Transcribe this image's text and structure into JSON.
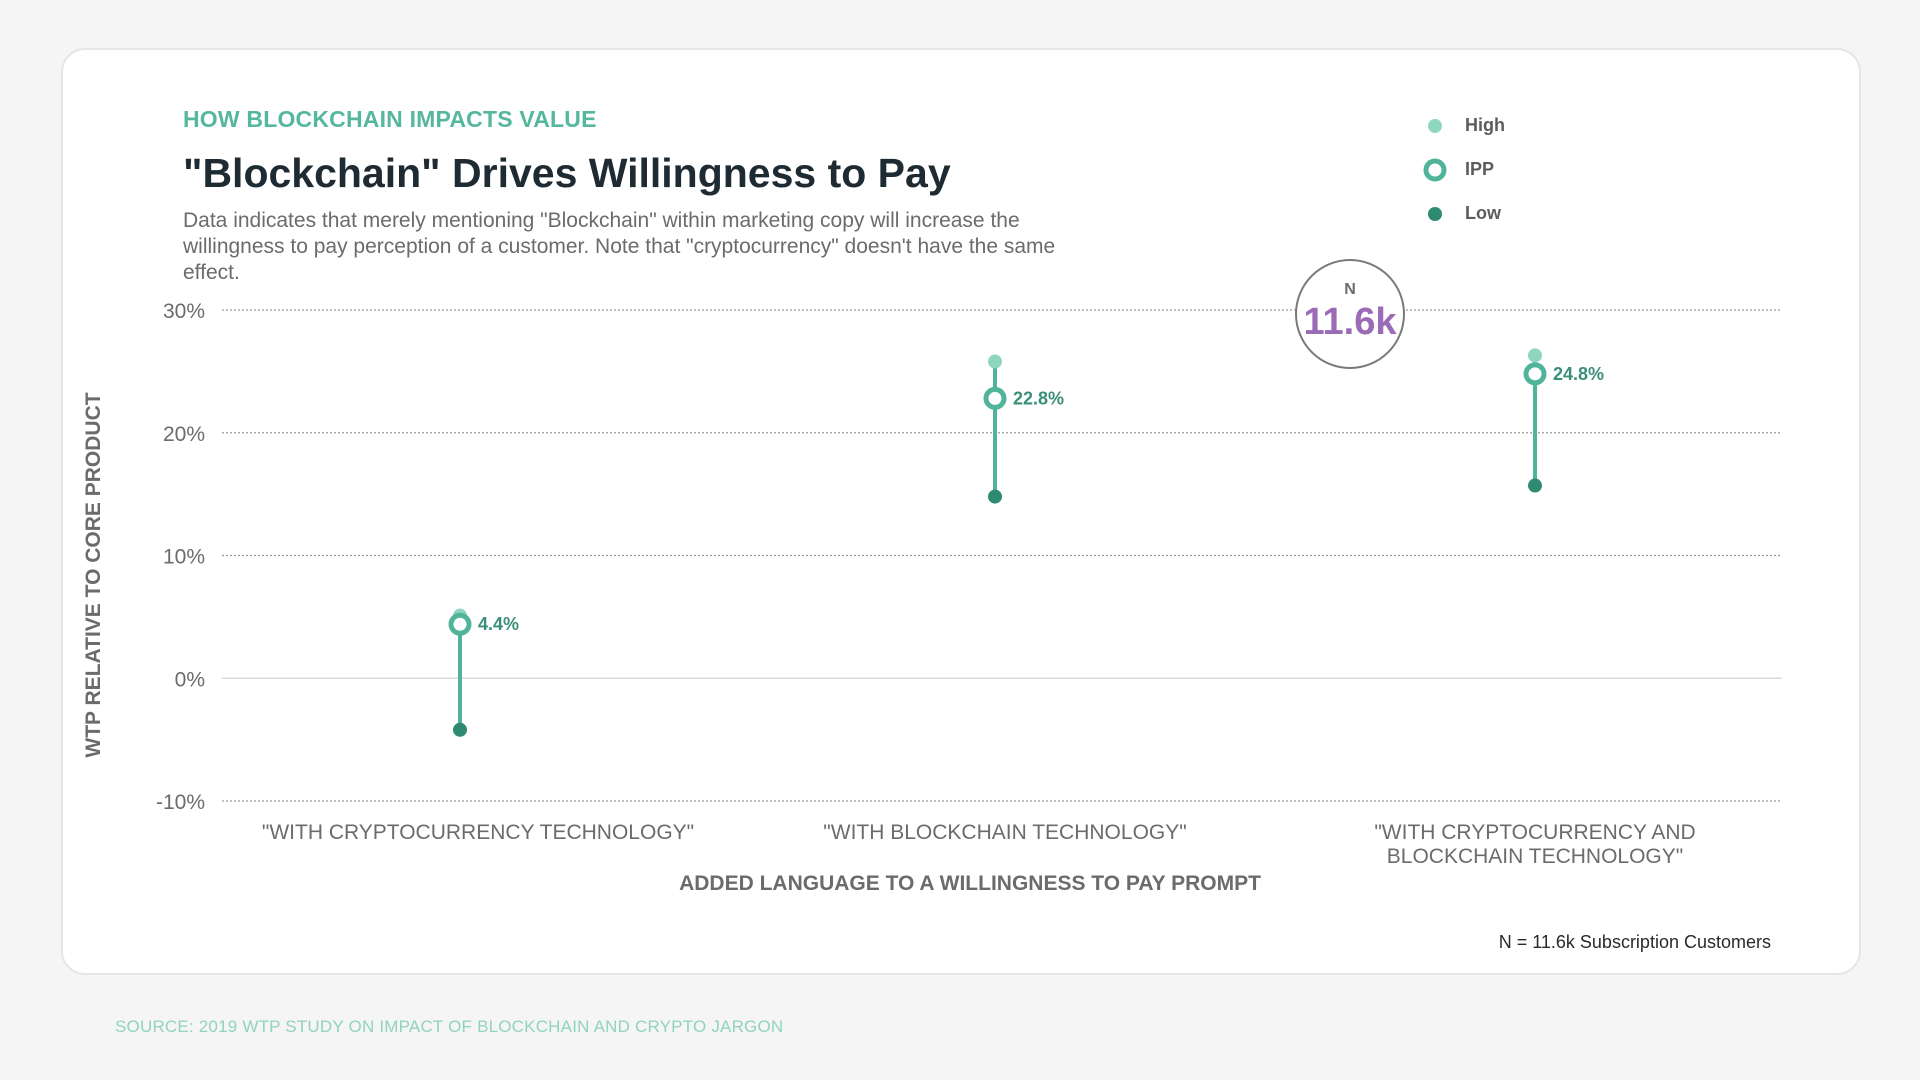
{
  "header": {
    "kicker": "HOW BLOCKCHAIN IMPACTS VALUE",
    "title": "\"Blockchain\" Drives Willingness to Pay",
    "subtitle": "Data indicates that merely mentioning \"Blockchain\" within marketing copy will increase the willingness to pay perception of a customer. Note that \"cryptocurrency\" doesn't have the same effect."
  },
  "legend": [
    {
      "label": "High",
      "icon": "dot-light",
      "color": "#8fd6c0"
    },
    {
      "label": "IPP",
      "icon": "ring",
      "color": "#4fb49a"
    },
    {
      "label": "Low",
      "icon": "dot-dark",
      "color": "#2f8a72"
    }
  ],
  "badge": {
    "label": "N",
    "value": "11.6k",
    "color": "#9b6bb5"
  },
  "footnote": "N = 11.6k Subscription Customers",
  "source": "SOURCE: 2019 WTP STUDY ON IMPACT OF BLOCKCHAIN AND CRYPTO JARGON",
  "colors": {
    "high": "#8fd6c0",
    "ipp": "#4fb49a",
    "low": "#2f8a72",
    "label": "#3a8f79",
    "axis": "#6b6b6b"
  },
  "chart_data": {
    "type": "dot-range",
    "title": "\"Blockchain\" Drives Willingness to Pay",
    "xlabel": "ADDED LANGUAGE TO A WILLINGNESS TO PAY PROMPT",
    "ylabel": "WTP RELATIVE TO CORE PRODUCT",
    "ylim": [
      -10,
      30
    ],
    "yticks": [
      30,
      20,
      10,
      0,
      -10
    ],
    "ytick_labels": [
      "30%",
      "20%",
      "10%",
      "0%",
      "-10%"
    ],
    "categories": [
      [
        "\"WITH CRYPTOCURRENCY TECHNOLOGY\""
      ],
      [
        "\"WITH BLOCKCHAIN TECHNOLOGY\""
      ],
      [
        "\"WITH CRYPTOCURRENCY AND",
        "BLOCKCHAIN TECHNOLOGY\""
      ]
    ],
    "series": [
      {
        "name": "High",
        "values": [
          5.1,
          25.8,
          26.3
        ]
      },
      {
        "name": "IPP",
        "values": [
          4.4,
          22.8,
          24.8
        ]
      },
      {
        "name": "Low",
        "values": [
          -4.2,
          14.8,
          15.7
        ]
      }
    ],
    "ipp_labels": [
      "4.4%",
      "22.8%",
      "24.8%"
    ],
    "grid": true,
    "legend_position": "top-right"
  }
}
